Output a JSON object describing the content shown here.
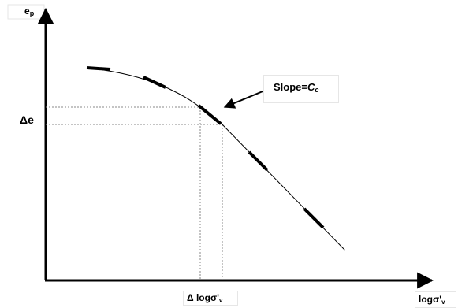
{
  "labels": {
    "y_axis": "e",
    "y_axis_sub": "p",
    "x_axis": "logσ'",
    "x_axis_sub": "v",
    "delta_e": "Δe",
    "delta_log": "Δ logσ'",
    "delta_log_sub": "v",
    "slope_prefix": "Slope=",
    "slope_symbol": "C",
    "slope_sub": "c"
  },
  "colors": {
    "line": "#000000",
    "guide": "#888888",
    "box_border": "#e6e6e6",
    "background": "#ffffff"
  },
  "icons": {
    "slope_pointer": "arrow-pointer",
    "axis_heads": "arrowhead"
  }
}
